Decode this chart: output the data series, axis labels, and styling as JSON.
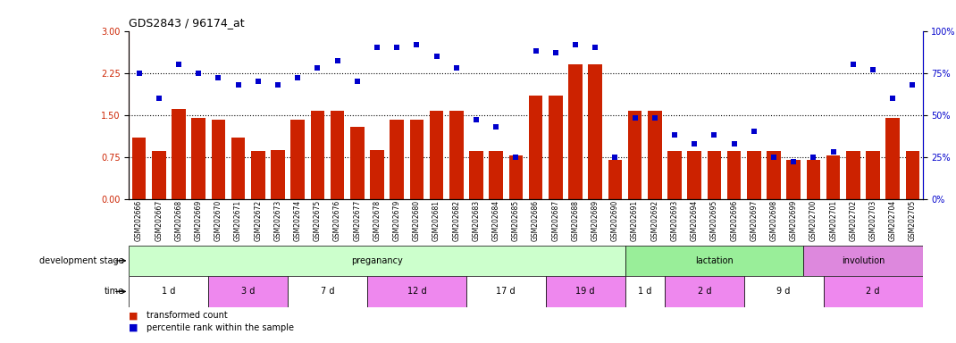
{
  "title": "GDS2843 / 96174_at",
  "samples": [
    "GSM202666",
    "GSM202667",
    "GSM202668",
    "GSM202669",
    "GSM202670",
    "GSM202671",
    "GSM202672",
    "GSM202673",
    "GSM202674",
    "GSM202675",
    "GSM202676",
    "GSM202677",
    "GSM202678",
    "GSM202679",
    "GSM202680",
    "GSM202681",
    "GSM202682",
    "GSM202683",
    "GSM202684",
    "GSM202685",
    "GSM202686",
    "GSM202687",
    "GSM202688",
    "GSM202689",
    "GSM202690",
    "GSM202691",
    "GSM202692",
    "GSM202693",
    "GSM202694",
    "GSM202695",
    "GSM202696",
    "GSM202697",
    "GSM202698",
    "GSM202699",
    "GSM202700",
    "GSM202701",
    "GSM202702",
    "GSM202703",
    "GSM202704",
    "GSM202705"
  ],
  "bar_values": [
    1.1,
    0.85,
    1.6,
    1.45,
    1.42,
    1.1,
    0.85,
    0.87,
    1.42,
    1.57,
    1.57,
    1.28,
    0.87,
    1.42,
    1.42,
    1.57,
    1.57,
    0.85,
    0.85,
    0.77,
    1.85,
    1.85,
    2.4,
    2.4,
    0.7,
    1.57,
    1.57,
    0.85,
    0.85,
    0.85,
    0.85,
    0.85,
    0.85,
    0.7,
    0.7,
    0.77,
    0.85,
    0.85,
    1.45,
    0.85
  ],
  "percentile_values": [
    75,
    60,
    80,
    75,
    72,
    68,
    70,
    68,
    72,
    78,
    82,
    70,
    90,
    90,
    92,
    85,
    78,
    47,
    43,
    25,
    88,
    87,
    92,
    90,
    25,
    48,
    48,
    38,
    33,
    38,
    33,
    40,
    25,
    22,
    25,
    28,
    80,
    77,
    60,
    68
  ],
  "bar_color": "#cc2200",
  "dot_color": "#0000cc",
  "ylim_left": [
    0,
    3
  ],
  "ylim_right": [
    0,
    100
  ],
  "yticks_left": [
    0,
    0.75,
    1.5,
    2.25,
    3
  ],
  "yticks_right": [
    0,
    25,
    50,
    75,
    100
  ],
  "hlines": [
    0.75,
    1.5,
    2.25
  ],
  "dev_stages": [
    {
      "label": "preganancy",
      "start": 0,
      "end": 25,
      "color": "#ccffcc"
    },
    {
      "label": "lactation",
      "start": 25,
      "end": 34,
      "color": "#99ee99"
    },
    {
      "label": "involution",
      "start": 34,
      "end": 40,
      "color": "#dd88dd"
    }
  ],
  "time_periods": [
    {
      "label": "1 d",
      "start": 0,
      "end": 4,
      "color": "#ffffff"
    },
    {
      "label": "3 d",
      "start": 4,
      "end": 8,
      "color": "#ee88ee"
    },
    {
      "label": "7 d",
      "start": 8,
      "end": 12,
      "color": "#ffffff"
    },
    {
      "label": "12 d",
      "start": 12,
      "end": 17,
      "color": "#ee88ee"
    },
    {
      "label": "17 d",
      "start": 17,
      "end": 21,
      "color": "#ffffff"
    },
    {
      "label": "19 d",
      "start": 21,
      "end": 25,
      "color": "#ee88ee"
    },
    {
      "label": "1 d",
      "start": 25,
      "end": 27,
      "color": "#ffffff"
    },
    {
      "label": "2 d",
      "start": 27,
      "end": 31,
      "color": "#ee88ee"
    },
    {
      "label": "9 d",
      "start": 31,
      "end": 35,
      "color": "#ffffff"
    },
    {
      "label": "2 d",
      "start": 35,
      "end": 40,
      "color": "#ee88ee"
    }
  ],
  "left_label_dev": "development stage",
  "left_label_time": "time",
  "legend_bar": "transformed count",
  "legend_dot": "percentile rank within the sample",
  "bg_color": "#ffffff",
  "xticklabel_bg": "#dddddd"
}
